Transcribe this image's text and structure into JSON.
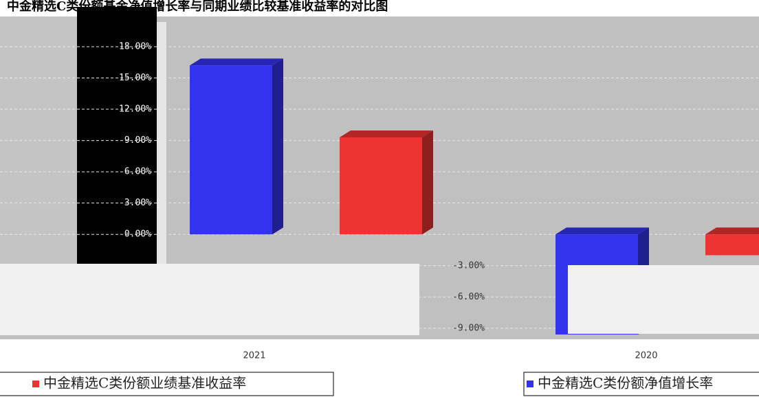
{
  "chart_data": {
    "type": "bar",
    "title": "中金精选C类份额基金净值增长率与同期业绩比较基准收益率的对比图",
    "categories": [
      "2021",
      "2020"
    ],
    "series": [
      {
        "name": "中金精选C类份额净值增长率",
        "color": "#3333ee",
        "values": [
          16.2,
          -9.6
        ]
      },
      {
        "name": "中金精选C类份额业绩基准收益率",
        "color": "#ee3333",
        "values": [
          9.3,
          -2.0
        ]
      }
    ],
    "ylim": [
      -9.8,
      20.5
    ],
    "yticks": [
      {
        "value": -9,
        "label": "-9.00%"
      },
      {
        "value": -6,
        "label": "-6.00%"
      },
      {
        "value": -3,
        "label": "-3.00%"
      },
      {
        "value": 0,
        "label": "0.00%"
      },
      {
        "value": 3,
        "label": "3.00%"
      },
      {
        "value": 6,
        "label": "6.00%"
      },
      {
        "value": 9,
        "label": "9.00%"
      },
      {
        "value": 12,
        "label": "12.00%"
      },
      {
        "value": 15,
        "label": "15.00%"
      },
      {
        "value": 18,
        "label": "18.00%"
      }
    ],
    "grid": true
  }
}
